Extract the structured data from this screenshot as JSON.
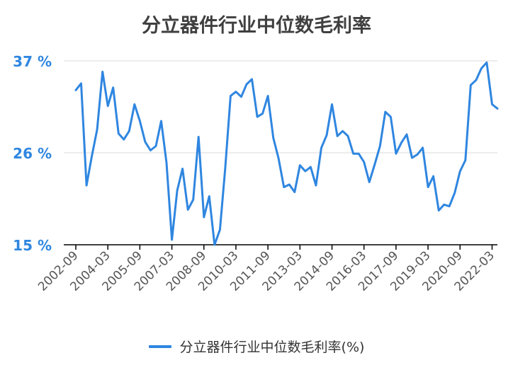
{
  "chart_data": {
    "type": "line",
    "title": "分立器件行业中位数毛利率",
    "xlabel": "",
    "ylabel": "",
    "ylim": [
      15,
      37
    ],
    "yticks": [
      15,
      26,
      37
    ],
    "ytick_labels": [
      "15 %",
      "26 %",
      "37 %"
    ],
    "xtick_labels": [
      "2002-09",
      "2004-03",
      "2005-09",
      "2007-03",
      "2008-09",
      "2010-03",
      "2011-09",
      "2013-03",
      "2014-09",
      "2016-03",
      "2017-09",
      "2019-03",
      "2020-09",
      "2022-03"
    ],
    "grid": true,
    "legend_position": "bottom",
    "color": "#2f86e0",
    "series": [
      {
        "name": "分立器件行业中位数毛利率(%)",
        "values": [
          33.5,
          34.3,
          22.1,
          25.6,
          28.8,
          35.7,
          31.6,
          33.8,
          28.3,
          27.6,
          28.6,
          31.8,
          29.8,
          27.3,
          26.3,
          26.8,
          29.8,
          24.8,
          15.6,
          21.5,
          24.1,
          19.2,
          20.4,
          27.9,
          18.3,
          20.8,
          15.0,
          16.8,
          24.2,
          32.8,
          33.3,
          32.7,
          34.2,
          34.8,
          30.3,
          30.7,
          32.8,
          27.8,
          25.3,
          21.9,
          22.2,
          21.3,
          24.5,
          23.8,
          24.3,
          22.1,
          26.6,
          28.1,
          31.8,
          28.0,
          28.6,
          28.0,
          25.9,
          25.9,
          24.9,
          22.5,
          24.6,
          26.8,
          30.9,
          30.3,
          25.9,
          27.2,
          28.2,
          25.4,
          25.8,
          26.6,
          21.9,
          23.2,
          19.1,
          19.8,
          19.6,
          21.2,
          23.8,
          25.1,
          34.1,
          34.7,
          36.1,
          36.8,
          31.8,
          31.3
        ]
      }
    ]
  }
}
